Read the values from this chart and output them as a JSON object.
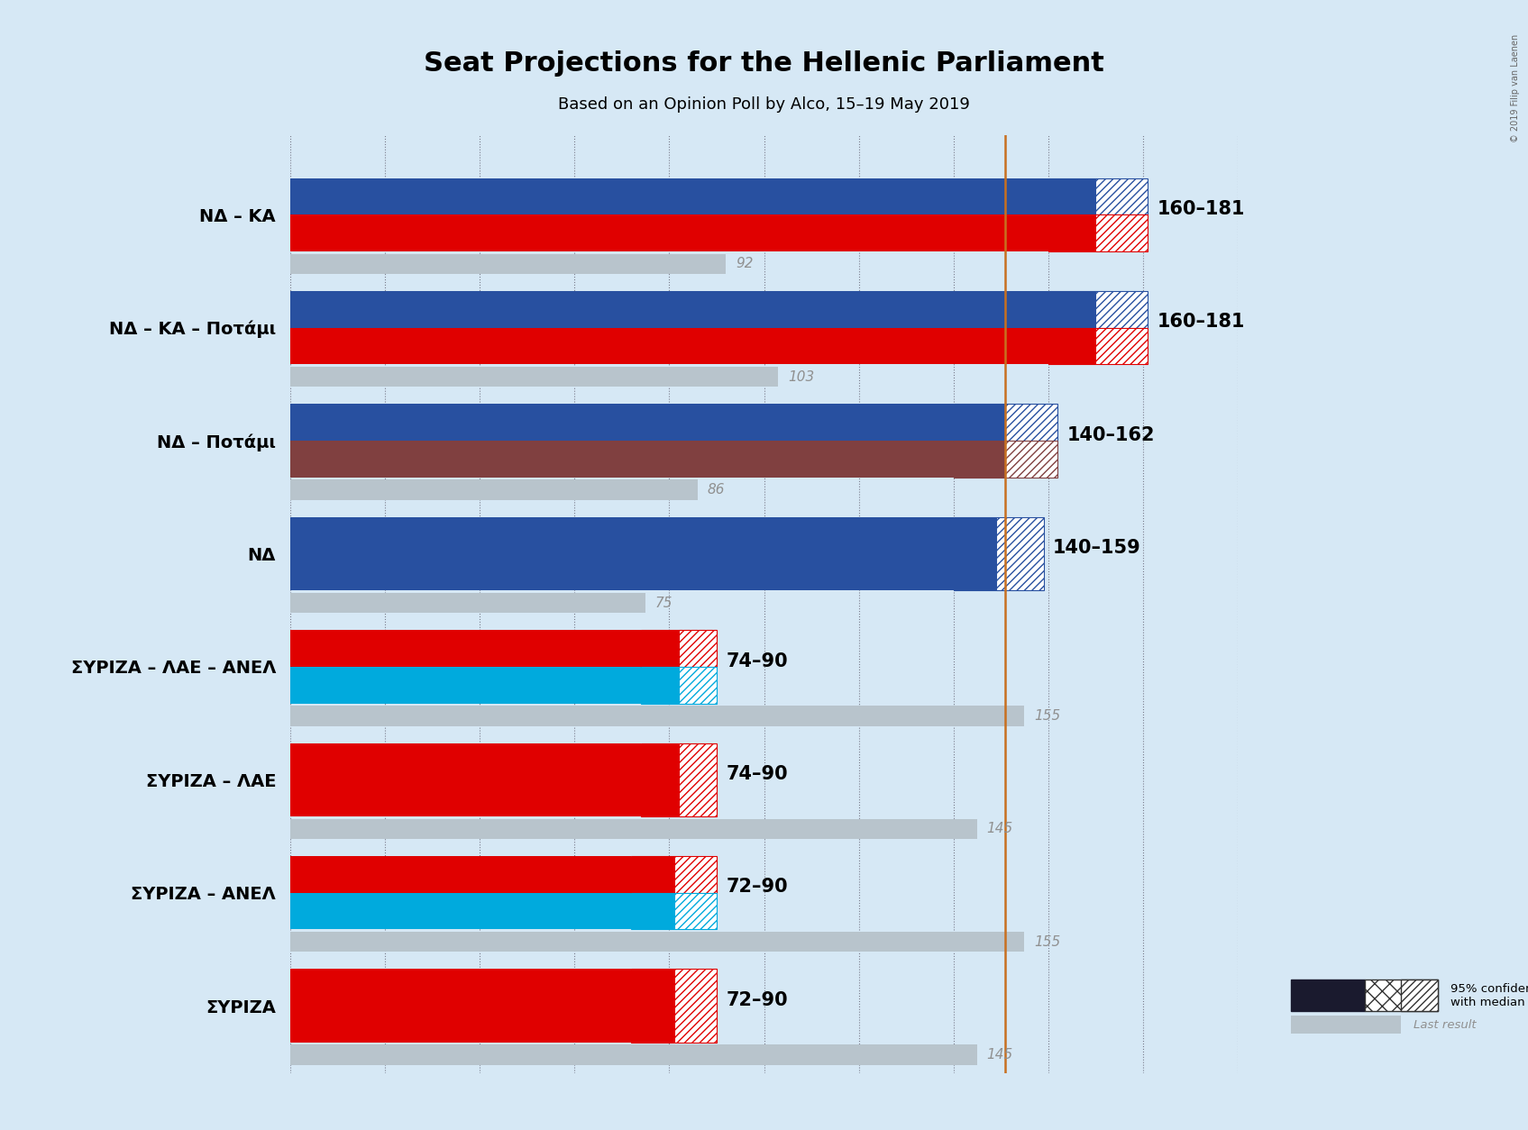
{
  "title": "Seat Projections for the Hellenic Parliament",
  "subtitle": "Based on an Opinion Poll by Alco, 15–19 May 2019",
  "copyright": "© 2019 Filip van Laenen",
  "background_color": "#d6e8f5",
  "majority_line": 151,
  "majority_color": "#c87020",
  "xmax": 200,
  "grid_step": 20,
  "coalitions": [
    {
      "label": "NΔ – KΑ",
      "underline": false,
      "min_seats": 160,
      "max_seats": 181,
      "median": 170,
      "last_result": 92,
      "color1": "#2850a0",
      "color2": "#e00000",
      "range_label": "160–181",
      "last_label": "92"
    },
    {
      "label": "NΔ – KΑ – Ποτάμι",
      "underline": false,
      "min_seats": 160,
      "max_seats": 181,
      "median": 170,
      "last_result": 103,
      "color1": "#2850a0",
      "color2": "#e00000",
      "range_label": "160–181",
      "last_label": "103"
    },
    {
      "label": "NΔ – Ποτάμι",
      "underline": false,
      "min_seats": 140,
      "max_seats": 162,
      "median": 151,
      "last_result": 86,
      "color1": "#2850a0",
      "color2": "#804040",
      "range_label": "140–162",
      "last_label": "86"
    },
    {
      "label": "NΔ",
      "underline": false,
      "min_seats": 140,
      "max_seats": 159,
      "median": 149,
      "last_result": 75,
      "color1": "#2850a0",
      "color2": null,
      "range_label": "140–159",
      "last_label": "75"
    },
    {
      "label": "ΣΥΡΙΖΑ – ΛΑΕ – ΑΝΕΛ",
      "underline": false,
      "min_seats": 74,
      "max_seats": 90,
      "median": 82,
      "last_result": 155,
      "color1": "#e00000",
      "color2": "#00aadd",
      "range_label": "74–90",
      "last_label": "155"
    },
    {
      "label": "ΣΥΡΙΖΑ – ΛΑΕ",
      "underline": false,
      "min_seats": 74,
      "max_seats": 90,
      "median": 82,
      "last_result": 145,
      "color1": "#e00000",
      "color2": null,
      "range_label": "74–90",
      "last_label": "145"
    },
    {
      "label": "ΣΥΡΙΖΑ – ΑΝΕΛ",
      "underline": false,
      "min_seats": 72,
      "max_seats": 90,
      "median": 81,
      "last_result": 155,
      "color1": "#e00000",
      "color2": "#00aadd",
      "range_label": "72–90",
      "last_label": "155"
    },
    {
      "label": "ΣΥΡΙΖΑ",
      "underline": true,
      "min_seats": 72,
      "max_seats": 90,
      "median": 81,
      "last_result": 145,
      "color1": "#e00000",
      "color2": null,
      "range_label": "72–90",
      "last_label": "145"
    }
  ]
}
